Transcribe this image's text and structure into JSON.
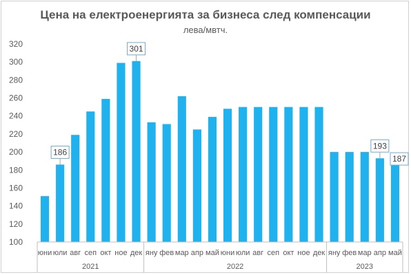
{
  "chart_data": {
    "type": "bar",
    "title": "Цена на електроенергията за бизнеса след компенсации",
    "subtitle": "лева/мвтч.",
    "xlabel": "",
    "ylabel": "",
    "ylim": [
      100,
      320
    ],
    "yticks": [
      100,
      120,
      140,
      160,
      180,
      200,
      220,
      240,
      260,
      280,
      300,
      320
    ],
    "grid": false,
    "bar_color": "#1fb2ef",
    "categories": [
      "юни",
      "юли",
      "авг",
      "сеп",
      "окт",
      "ное",
      "дек",
      "яну",
      "фев",
      "мар",
      "апр",
      "май",
      "юни",
      "юли",
      "авг",
      "сеп",
      "окт",
      "ное",
      "дек",
      "яну",
      "фев",
      "мар",
      "апр",
      "май"
    ],
    "values": [
      151,
      186,
      219,
      245,
      259,
      299,
      301,
      233,
      231,
      262,
      225,
      239,
      248,
      250,
      250,
      250,
      250,
      250,
      250,
      200,
      200,
      200,
      193,
      187
    ],
    "year_groups": [
      {
        "label": "2021",
        "start": 0,
        "end": 6
      },
      {
        "label": "2022",
        "start": 7,
        "end": 18
      },
      {
        "label": "2023",
        "start": 19,
        "end": 23
      }
    ],
    "data_labels": [
      {
        "index": 1,
        "text": "186"
      },
      {
        "index": 6,
        "text": "301"
      },
      {
        "index": 22,
        "text": "193"
      },
      {
        "index": 23,
        "text": "187"
      }
    ]
  }
}
